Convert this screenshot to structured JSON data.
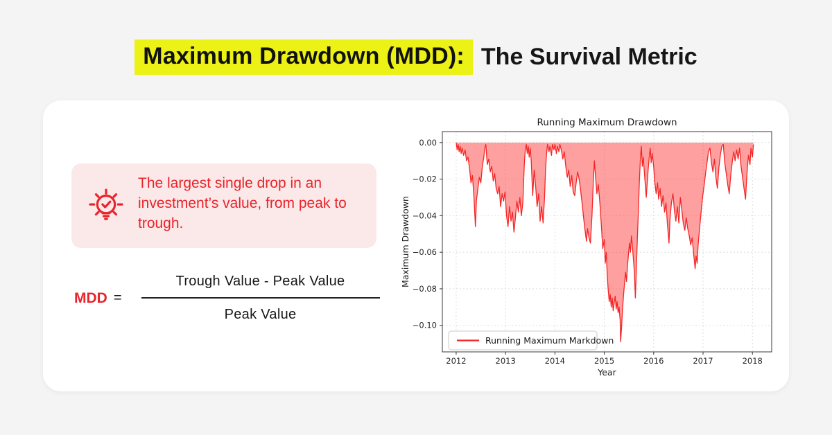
{
  "header": {
    "highlighted": "Maximum Drawdown (MDD):",
    "rest": "The Survival Metric"
  },
  "definition": {
    "icon": "lightbulb-check-icon",
    "text": "The largest single drop in an investment’s value, from peak to trough."
  },
  "formula": {
    "lhs": "MDD",
    "equals": "=",
    "numerator": "Trough Value - Peak Value",
    "denominator": "Peak Value"
  },
  "colors": {
    "page_bg": "#f4f4f4",
    "highlight_yellow": "#ecf215",
    "accent_red": "#e8242c",
    "callout_pink": "#fbe8e8",
    "chart_line_red": "#f42525",
    "chart_fill_red": "rgba(255,45,45,0.45)"
  },
  "chart_data": {
    "type": "area",
    "title": "Running Maximum Drawdown",
    "xlabel": "Year",
    "ylabel": "Maximum Drawdown",
    "legend": [
      "Running Maximum Markdown"
    ],
    "legend_position": "lower left",
    "grid": true,
    "xlim": [
      2011.72,
      2018.39
    ],
    "ylim": [
      -0.1145,
      0.006
    ],
    "xticks": [
      2012,
      2013,
      2014,
      2015,
      2016,
      2017,
      2018
    ],
    "xtick_labels": [
      "2012",
      "2013",
      "2014",
      "2015",
      "2016",
      "2017",
      "2018"
    ],
    "yticks": [
      0.0,
      -0.02,
      -0.04,
      -0.06,
      -0.08,
      -0.1
    ],
    "ytick_labels": [
      "0.00",
      "−0.02",
      "−0.04",
      "−0.06",
      "−0.08",
      "−0.10"
    ],
    "points": [
      [
        2012.0,
        0.0
      ],
      [
        2012.02,
        -0.004
      ],
      [
        2012.04,
        -0.001
      ],
      [
        2012.06,
        -0.005
      ],
      [
        2012.08,
        -0.002
      ],
      [
        2012.1,
        -0.006
      ],
      [
        2012.12,
        -0.003
      ],
      [
        2012.15,
        -0.007
      ],
      [
        2012.18,
        -0.004
      ],
      [
        2012.21,
        -0.01
      ],
      [
        2012.24,
        -0.008
      ],
      [
        2012.27,
        -0.014
      ],
      [
        2012.3,
        -0.022
      ],
      [
        2012.33,
        -0.018
      ],
      [
        2012.36,
        -0.03
      ],
      [
        2012.39,
        -0.046
      ],
      [
        2012.41,
        -0.032
      ],
      [
        2012.44,
        -0.025
      ],
      [
        2012.47,
        -0.019
      ],
      [
        2012.5,
        -0.022
      ],
      [
        2012.53,
        -0.013
      ],
      [
        2012.56,
        -0.008
      ],
      [
        2012.58,
        -0.003
      ],
      [
        2012.6,
        -0.001
      ],
      [
        2012.63,
        -0.012
      ],
      [
        2012.66,
        -0.009
      ],
      [
        2012.69,
        -0.016
      ],
      [
        2012.72,
        -0.013
      ],
      [
        2012.75,
        -0.021
      ],
      [
        2012.78,
        -0.017
      ],
      [
        2012.81,
        -0.025
      ],
      [
        2012.84,
        -0.028
      ],
      [
        2012.87,
        -0.024
      ],
      [
        2012.9,
        -0.035
      ],
      [
        2012.93,
        -0.028
      ],
      [
        2012.96,
        -0.032
      ],
      [
        2012.99,
        -0.027
      ],
      [
        2013.02,
        -0.04
      ],
      [
        2013.05,
        -0.046
      ],
      [
        2013.08,
        -0.035
      ],
      [
        2013.11,
        -0.043
      ],
      [
        2013.14,
        -0.038
      ],
      [
        2013.17,
        -0.049
      ],
      [
        2013.2,
        -0.041
      ],
      [
        2013.23,
        -0.032
      ],
      [
        2013.26,
        -0.038
      ],
      [
        2013.29,
        -0.03
      ],
      [
        2013.32,
        -0.04
      ],
      [
        2013.35,
        -0.033
      ],
      [
        2013.38,
        -0.012
      ],
      [
        2013.4,
        -0.004
      ],
      [
        2013.42,
        -0.001
      ],
      [
        2013.44,
        -0.006
      ],
      [
        2013.46,
        -0.002
      ],
      [
        2013.48,
        -0.008
      ],
      [
        2013.5,
        -0.003
      ],
      [
        2013.52,
        -0.01
      ],
      [
        2013.55,
        -0.029
      ],
      [
        2013.58,
        -0.015
      ],
      [
        2013.61,
        -0.024
      ],
      [
        2013.64,
        -0.035
      ],
      [
        2013.67,
        -0.028
      ],
      [
        2013.7,
        -0.043
      ],
      [
        2013.73,
        -0.035
      ],
      [
        2013.76,
        -0.044
      ],
      [
        2013.79,
        -0.03
      ],
      [
        2013.81,
        -0.015
      ],
      [
        2013.83,
        -0.006
      ],
      [
        2013.85,
        -0.001
      ],
      [
        2013.88,
        -0.005
      ],
      [
        2013.9,
        -0.002
      ],
      [
        2013.93,
        -0.007
      ],
      [
        2013.95,
        -0.001
      ],
      [
        2013.98,
        -0.004
      ],
      [
        2014.0,
        -0.001
      ],
      [
        2014.03,
        -0.006
      ],
      [
        2014.05,
        -0.002
      ],
      [
        2014.08,
        -0.005
      ],
      [
        2014.1,
        -0.001
      ],
      [
        2014.13,
        -0.004
      ],
      [
        2014.16,
        -0.009
      ],
      [
        2014.19,
        -0.005
      ],
      [
        2014.22,
        -0.013
      ],
      [
        2014.25,
        -0.019
      ],
      [
        2014.28,
        -0.015
      ],
      [
        2014.31,
        -0.024
      ],
      [
        2014.34,
        -0.018
      ],
      [
        2014.37,
        -0.027
      ],
      [
        2014.4,
        -0.029
      ],
      [
        2014.43,
        -0.022
      ],
      [
        2014.46,
        -0.016
      ],
      [
        2014.49,
        -0.02
      ],
      [
        2014.52,
        -0.026
      ],
      [
        2014.55,
        -0.033
      ],
      [
        2014.58,
        -0.041
      ],
      [
        2014.61,
        -0.048
      ],
      [
        2014.64,
        -0.054
      ],
      [
        2014.66,
        -0.047
      ],
      [
        2014.69,
        -0.052
      ],
      [
        2014.72,
        -0.055
      ],
      [
        2014.75,
        -0.04
      ],
      [
        2014.78,
        -0.02
      ],
      [
        2014.8,
        -0.01
      ],
      [
        2014.82,
        -0.018
      ],
      [
        2014.85,
        -0.028
      ],
      [
        2014.88,
        -0.023
      ],
      [
        2014.91,
        -0.033
      ],
      [
        2014.94,
        -0.045
      ],
      [
        2014.97,
        -0.058
      ],
      [
        2015.0,
        -0.053
      ],
      [
        2015.02,
        -0.066
      ],
      [
        2015.04,
        -0.06
      ],
      [
        2015.06,
        -0.073
      ],
      [
        2015.08,
        -0.081
      ],
      [
        2015.1,
        -0.087
      ],
      [
        2015.12,
        -0.083
      ],
      [
        2015.14,
        -0.09
      ],
      [
        2015.16,
        -0.085
      ],
      [
        2015.18,
        -0.092
      ],
      [
        2015.2,
        -0.088
      ],
      [
        2015.22,
        -0.084
      ],
      [
        2015.24,
        -0.091
      ],
      [
        2015.26,
        -0.087
      ],
      [
        2015.28,
        -0.093
      ],
      [
        2015.3,
        -0.09
      ],
      [
        2015.32,
        -0.097
      ],
      [
        2015.33,
        -0.109
      ],
      [
        2015.35,
        -0.101
      ],
      [
        2015.37,
        -0.091
      ],
      [
        2015.39,
        -0.083
      ],
      [
        2015.41,
        -0.077
      ],
      [
        2015.43,
        -0.071
      ],
      [
        2015.45,
        -0.076
      ],
      [
        2015.47,
        -0.067
      ],
      [
        2015.49,
        -0.061
      ],
      [
        2015.51,
        -0.055
      ],
      [
        2015.53,
        -0.06
      ],
      [
        2015.55,
        -0.051
      ],
      [
        2015.57,
        -0.057
      ],
      [
        2015.59,
        -0.064
      ],
      [
        2015.61,
        -0.071
      ],
      [
        2015.63,
        -0.085
      ],
      [
        2015.65,
        -0.068
      ],
      [
        2015.67,
        -0.052
      ],
      [
        2015.69,
        -0.038
      ],
      [
        2015.71,
        -0.022
      ],
      [
        2015.73,
        -0.009
      ],
      [
        2015.75,
        -0.002
      ],
      [
        2015.77,
        -0.013
      ],
      [
        2015.79,
        -0.008
      ],
      [
        2015.81,
        -0.016
      ],
      [
        2015.83,
        -0.023
      ],
      [
        2015.85,
        -0.03
      ],
      [
        2015.87,
        -0.022
      ],
      [
        2015.89,
        -0.014
      ],
      [
        2015.91,
        -0.008
      ],
      [
        2015.93,
        -0.003
      ],
      [
        2015.95,
        -0.011
      ],
      [
        2015.97,
        -0.006
      ],
      [
        2016.0,
        -0.013
      ],
      [
        2016.02,
        -0.021
      ],
      [
        2016.05,
        -0.028
      ],
      [
        2016.08,
        -0.022
      ],
      [
        2016.1,
        -0.031
      ],
      [
        2016.13,
        -0.025
      ],
      [
        2016.16,
        -0.035
      ],
      [
        2016.19,
        -0.029
      ],
      [
        2016.22,
        -0.038
      ],
      [
        2016.25,
        -0.033
      ],
      [
        2016.28,
        -0.045
      ],
      [
        2016.31,
        -0.055
      ],
      [
        2016.33,
        -0.042
      ],
      [
        2016.36,
        -0.033
      ],
      [
        2016.39,
        -0.028
      ],
      [
        2016.42,
        -0.037
      ],
      [
        2016.45,
        -0.043
      ],
      [
        2016.48,
        -0.035
      ],
      [
        2016.51,
        -0.044
      ],
      [
        2016.54,
        -0.03
      ],
      [
        2016.57,
        -0.037
      ],
      [
        2016.6,
        -0.044
      ],
      [
        2016.63,
        -0.048
      ],
      [
        2016.66,
        -0.041
      ],
      [
        2016.69,
        -0.047
      ],
      [
        2016.72,
        -0.051
      ],
      [
        2016.75,
        -0.056
      ],
      [
        2016.78,
        -0.052
      ],
      [
        2016.81,
        -0.061
      ],
      [
        2016.84,
        -0.069
      ],
      [
        2016.86,
        -0.062
      ],
      [
        2016.88,
        -0.066
      ],
      [
        2016.9,
        -0.056
      ],
      [
        2016.93,
        -0.047
      ],
      [
        2016.96,
        -0.038
      ],
      [
        2016.99,
        -0.03
      ],
      [
        2017.02,
        -0.024
      ],
      [
        2017.05,
        -0.017
      ],
      [
        2017.08,
        -0.011
      ],
      [
        2017.11,
        -0.005
      ],
      [
        2017.14,
        -0.003
      ],
      [
        2017.17,
        -0.011
      ],
      [
        2017.2,
        -0.016
      ],
      [
        2017.23,
        -0.009
      ],
      [
        2017.26,
        -0.019
      ],
      [
        2017.29,
        -0.025
      ],
      [
        2017.32,
        -0.014
      ],
      [
        2017.35,
        -0.007
      ],
      [
        2017.38,
        -0.002
      ],
      [
        2017.41,
        -0.001
      ],
      [
        2017.44,
        -0.011
      ],
      [
        2017.47,
        -0.017
      ],
      [
        2017.5,
        -0.023
      ],
      [
        2017.53,
        -0.028
      ],
      [
        2017.56,
        -0.018
      ],
      [
        2017.59,
        -0.011
      ],
      [
        2017.62,
        -0.005
      ],
      [
        2017.65,
        -0.01
      ],
      [
        2017.68,
        -0.004
      ],
      [
        2017.71,
        -0.009
      ],
      [
        2017.74,
        -0.003
      ],
      [
        2017.77,
        -0.013
      ],
      [
        2017.8,
        -0.019
      ],
      [
        2017.83,
        -0.025
      ],
      [
        2017.86,
        -0.031
      ],
      [
        2017.88,
        -0.021
      ],
      [
        2017.9,
        -0.013
      ],
      [
        2017.92,
        -0.007
      ],
      [
        2017.95,
        -0.012
      ],
      [
        2017.97,
        -0.003
      ],
      [
        2018.0,
        -0.008
      ],
      [
        2018.02,
        -0.001
      ]
    ]
  }
}
